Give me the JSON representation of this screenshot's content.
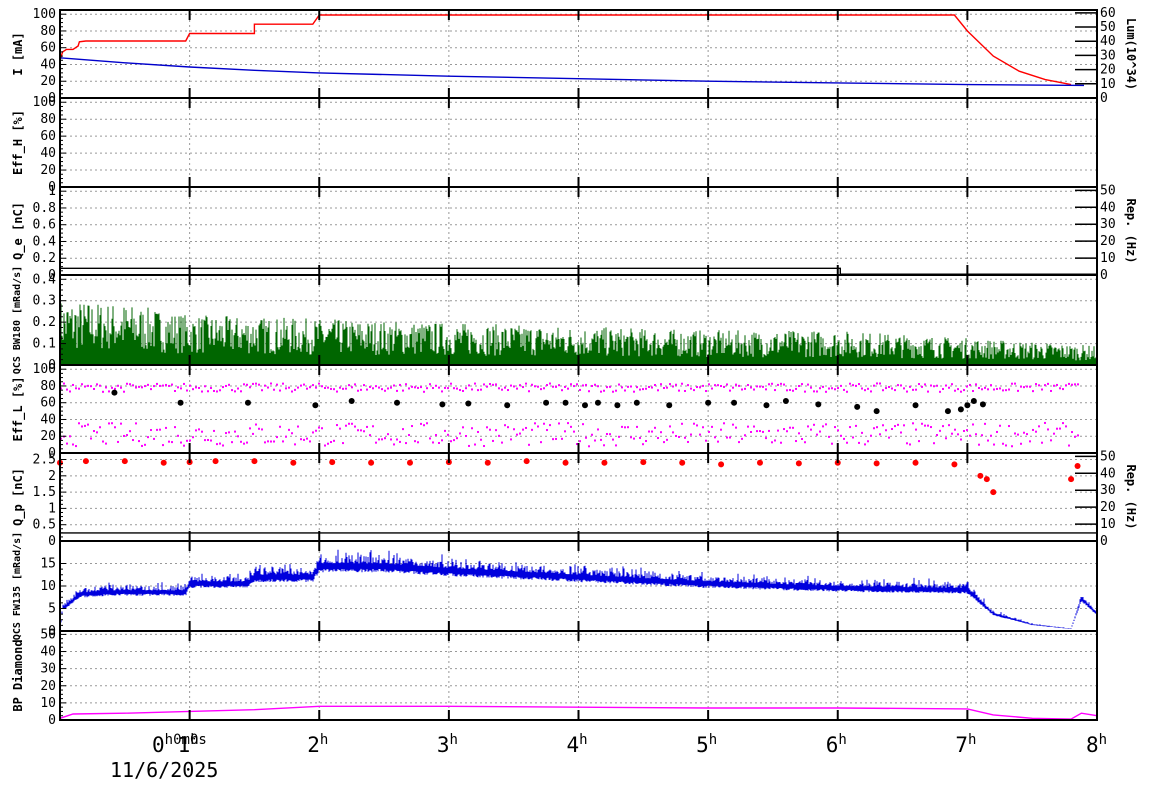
{
  "chart_data": {
    "type": "line",
    "date": "11/6/2025",
    "x_axis": {
      "range_hours": [
        0.0,
        8.0
      ],
      "origin_label": "0h0m0s",
      "tick_labels": [
        {
          "h": 0,
          "text": "0",
          "sup": "h0m0s"
        },
        {
          "h": 1,
          "text": "1",
          "sup": "h"
        },
        {
          "h": 2,
          "text": "2",
          "sup": "h"
        },
        {
          "h": 3,
          "text": "3",
          "sup": "h"
        },
        {
          "h": 4,
          "text": "4",
          "sup": "h"
        },
        {
          "h": 5,
          "text": "5",
          "sup": "h"
        },
        {
          "h": 6,
          "text": "6",
          "sup": "h"
        },
        {
          "h": 7,
          "text": "7",
          "sup": "h"
        },
        {
          "h": 8,
          "text": "8",
          "sup": "h"
        }
      ]
    },
    "panels": [
      {
        "id": "current",
        "ylabel": "I [mA]",
        "ylim": [
          0,
          105
        ],
        "yticks": [
          0,
          20,
          40,
          60,
          80,
          100
        ],
        "right_label": "Lum(10^34)",
        "right_ylim": [
          0,
          62
        ],
        "right_yticks": [
          0,
          10,
          20,
          30,
          40,
          50,
          60
        ],
        "series": [
          {
            "color": "#ff0000",
            "style": "line",
            "x": [
              0.0,
              0.02,
              0.05,
              0.1,
              0.14,
              0.15,
              0.2,
              0.5,
              0.97,
              1.0,
              1.5,
              1.5,
              1.95,
              2.0,
              2.5,
              3.0,
              3.5,
              4.0,
              4.5,
              5.0,
              5.5,
              6.0,
              6.5,
              6.8,
              6.9,
              7.0,
              7.2,
              7.4,
              7.6,
              7.8
            ],
            "y": [
              45,
              55,
              58,
              58,
              62,
              67,
              68,
              68,
              68,
              77,
              77,
              88,
              88,
              99,
              99,
              99,
              99,
              99,
              99,
              99,
              99,
              99,
              99,
              99,
              99,
              80,
              50,
              32,
              22,
              16
            ]
          },
          {
            "color": "#0000cc",
            "style": "line",
            "x": [
              0.0,
              0.5,
              1.0,
              1.5,
              2.0,
              3.0,
              4.0,
              5.0,
              6.0,
              7.0,
              7.9
            ],
            "y": [
              48,
              42,
              37,
              33,
              30,
              26,
              23,
              20,
              18,
              16,
              15
            ]
          }
        ]
      },
      {
        "id": "eff_h",
        "ylabel": "Eff_H [%]",
        "ylim": [
          0,
          105
        ],
        "yticks": [
          0,
          20,
          40,
          60,
          80,
          100
        ],
        "series": []
      },
      {
        "id": "qe",
        "ylabel": "Q_e [nC]",
        "ylim": [
          0,
          1.05
        ],
        "yticks": [
          0,
          0.2,
          0.4,
          0.6,
          0.8,
          1
        ],
        "right_label": "Rep. (Hz)",
        "right_ylim": [
          0,
          52
        ],
        "right_yticks": [
          0,
          10,
          20,
          30,
          40,
          50
        ],
        "series": [
          {
            "color": "#000000",
            "style": "line",
            "x": [
              0.0,
              6.02,
              6.02,
              8.0
            ],
            "y": [
              0.08,
              0.08,
              0.01,
              0.01
            ]
          }
        ]
      },
      {
        "id": "qcs_bw180",
        "ylabel": "QCS BW180 [mRad/s]",
        "ylim": [
          0,
          0.42
        ],
        "yticks": [
          0,
          0.1,
          0.2,
          0.3,
          0.4
        ],
        "series": [
          {
            "color": "#006600",
            "style": "noise",
            "x": [
              0.0,
              0.5,
              1.0,
              2.0,
              3.0,
              4.0,
              5.0,
              6.0,
              7.0,
              8.0
            ],
            "y": [
              0.17,
              0.16,
              0.13,
              0.12,
              0.11,
              0.1,
              0.09,
              0.09,
              0.07,
              0.05
            ]
          }
        ]
      },
      {
        "id": "eff_l",
        "ylabel": "Eff_L [%]",
        "ylim": [
          0,
          105
        ],
        "yticks": [
          0,
          20,
          40,
          60,
          80,
          100
        ],
        "series": [
          {
            "color": "#ff00ff",
            "style": "dots",
            "x": [
              0.0,
              7.85
            ],
            "y": [
              78,
              78
            ]
          },
          {
            "color": "#ff00ff",
            "style": "dots",
            "x": [
              0.0,
              7.85
            ],
            "y": [
              22,
              22
            ]
          },
          {
            "color": "#000000",
            "style": "points",
            "x": [
              0.42,
              0.93,
              1.45,
              1.97,
              2.25,
              2.6,
              2.95,
              3.15,
              3.45,
              3.75,
              3.9,
              4.05,
              4.15,
              4.3,
              4.45,
              4.7,
              5.0,
              5.2,
              5.45,
              5.6,
              5.85,
              6.15,
              6.3,
              6.6,
              6.85,
              6.95,
              7.0,
              7.05,
              7.12
            ],
            "y": [
              72,
              60,
              60,
              57,
              62,
              60,
              58,
              59,
              57,
              60,
              60,
              57,
              60,
              57,
              60,
              57,
              60,
              60,
              57,
              62,
              58,
              55,
              50,
              57,
              50,
              52,
              57,
              62,
              58
            ]
          }
        ]
      },
      {
        "id": "qp",
        "ylabel": "Q_p [nC]",
        "ylim": [
          0,
          2.7
        ],
        "yticks": [
          0,
          0.5,
          1,
          1.5,
          2,
          2.5
        ],
        "right_label": "Rep. (Hz)",
        "right_ylim": [
          0,
          52
        ],
        "right_yticks": [
          0,
          10,
          20,
          30,
          40,
          50
        ],
        "series": [
          {
            "color": "#ff0000",
            "style": "points",
            "x": [
              0.0,
              0.2,
              0.5,
              0.8,
              1.0,
              1.2,
              1.5,
              1.8,
              2.1,
              2.4,
              2.7,
              3.0,
              3.3,
              3.6,
              3.9,
              4.2,
              4.5,
              4.8,
              5.1,
              5.4,
              5.7,
              6.0,
              6.3,
              6.6,
              6.9,
              7.1,
              7.15,
              7.2,
              7.8,
              7.85
            ],
            "y": [
              2.4,
              2.45,
              2.45,
              2.4,
              2.42,
              2.45,
              2.45,
              2.4,
              2.42,
              2.4,
              2.4,
              2.42,
              2.4,
              2.45,
              2.4,
              2.4,
              2.42,
              2.4,
              2.35,
              2.4,
              2.38,
              2.4,
              2.38,
              2.4,
              2.35,
              2.0,
              1.9,
              1.5,
              1.9,
              2.3
            ]
          },
          {
            "color": "#000000",
            "style": "line",
            "x": [
              0.0,
              8.0
            ],
            "y": [
              0.25,
              0.25
            ]
          }
        ]
      },
      {
        "id": "qcs_fw135",
        "ylabel": "QCS FW135 [mRad/s]",
        "ylim": [
          0,
          20
        ],
        "yticks": [
          0,
          5,
          10,
          15
        ],
        "series": [
          {
            "color": "#0000dd",
            "style": "noise",
            "x": [
              0.0,
              0.02,
              0.06,
              0.15,
              0.4,
              0.97,
              1.0,
              1.45,
              1.5,
              1.95,
              2.0,
              2.5,
              3.0,
              4.0,
              5.0,
              6.0,
              7.0,
              7.2,
              7.5,
              7.8,
              7.88,
              8.0
            ],
            "y": [
              0,
              5.5,
              6,
              8.5,
              9,
              9,
              11,
              11,
              12.5,
              12.5,
              15,
              15,
              14,
              12.5,
              11,
              10,
              9.5,
              4,
              1.5,
              0.5,
              7.5,
              4
            ]
          }
        ]
      },
      {
        "id": "bp_diamond",
        "ylabel": "BP Diamond",
        "ylim": [
          0,
          52
        ],
        "yticks": [
          0,
          10,
          20,
          30,
          40,
          50
        ],
        "series": [
          {
            "color": "#ff00ff",
            "style": "line",
            "x": [
              0.0,
              0.1,
              0.5,
              1.0,
              1.5,
              2.0,
              3.0,
              4.0,
              5.0,
              6.0,
              7.0,
              7.2,
              7.5,
              7.8,
              7.88,
              8.0
            ],
            "y": [
              1,
              3.5,
              4,
              5,
              6,
              8,
              8,
              7.5,
              7,
              7,
              6.5,
              3,
              1,
              0.5,
              4,
              2.5
            ]
          }
        ]
      }
    ]
  }
}
